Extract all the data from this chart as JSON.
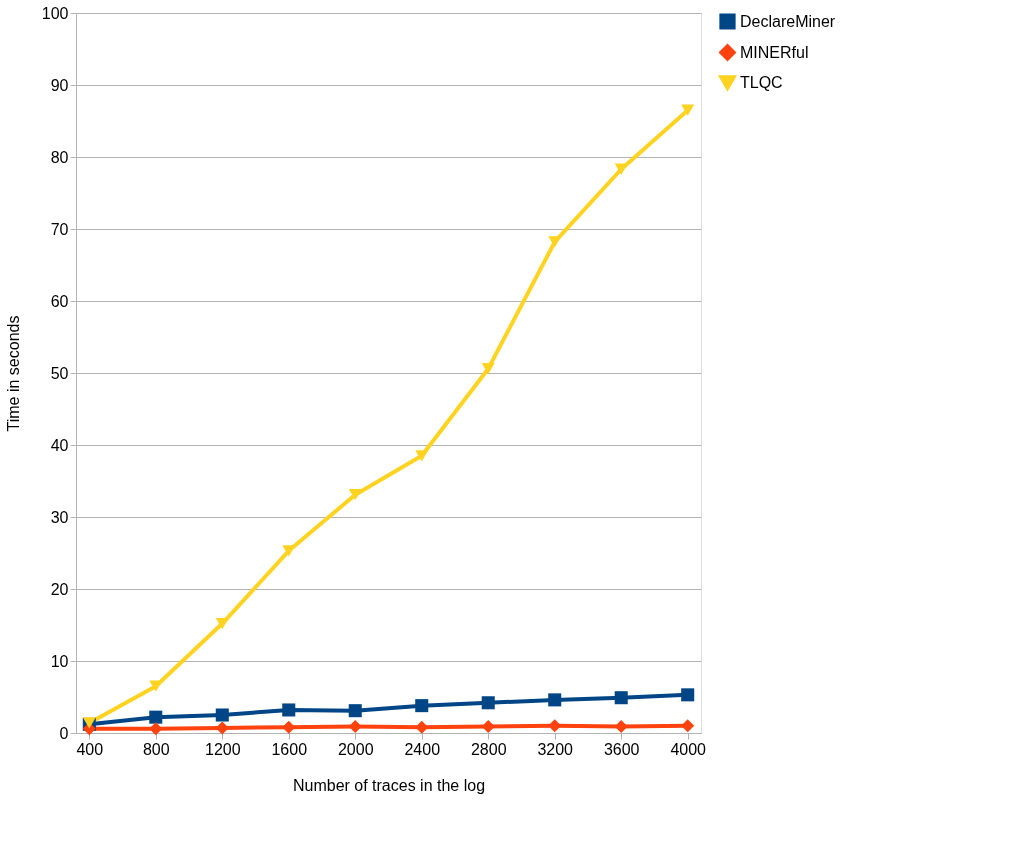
{
  "chart_data": {
    "type": "line",
    "xlabel": "Number of traces in the log",
    "ylabel": "Time in seconds",
    "categories": [
      "400",
      "800",
      "1200",
      "1600",
      "2000",
      "2400",
      "2800",
      "3200",
      "3600",
      "4000"
    ],
    "series": [
      {
        "name": "DeclareMiner",
        "color": "#004586",
        "marker": "square",
        "values": [
          1.2,
          2.2,
          2.5,
          3.2,
          3.1,
          3.8,
          4.2,
          4.6,
          4.9,
          5.3
        ]
      },
      {
        "name": "MINERful",
        "color": "#ff420e",
        "marker": "diamond",
        "values": [
          0.6,
          0.6,
          0.7,
          0.8,
          0.9,
          0.8,
          0.9,
          1.0,
          0.9,
          1.0
        ]
      },
      {
        "name": "TLQC",
        "color": "#ffd320",
        "marker": "triangle",
        "values": [
          1.4,
          6.5,
          15.2,
          25.3,
          33.1,
          38.5,
          50.6,
          68.2,
          78.3,
          86.5
        ]
      }
    ],
    "ylim": [
      0,
      100
    ],
    "yticks": [
      0,
      10,
      20,
      30,
      40,
      50,
      60,
      70,
      80,
      90,
      100
    ],
    "grid": "y",
    "legend": "right",
    "line_style": "solid"
  }
}
